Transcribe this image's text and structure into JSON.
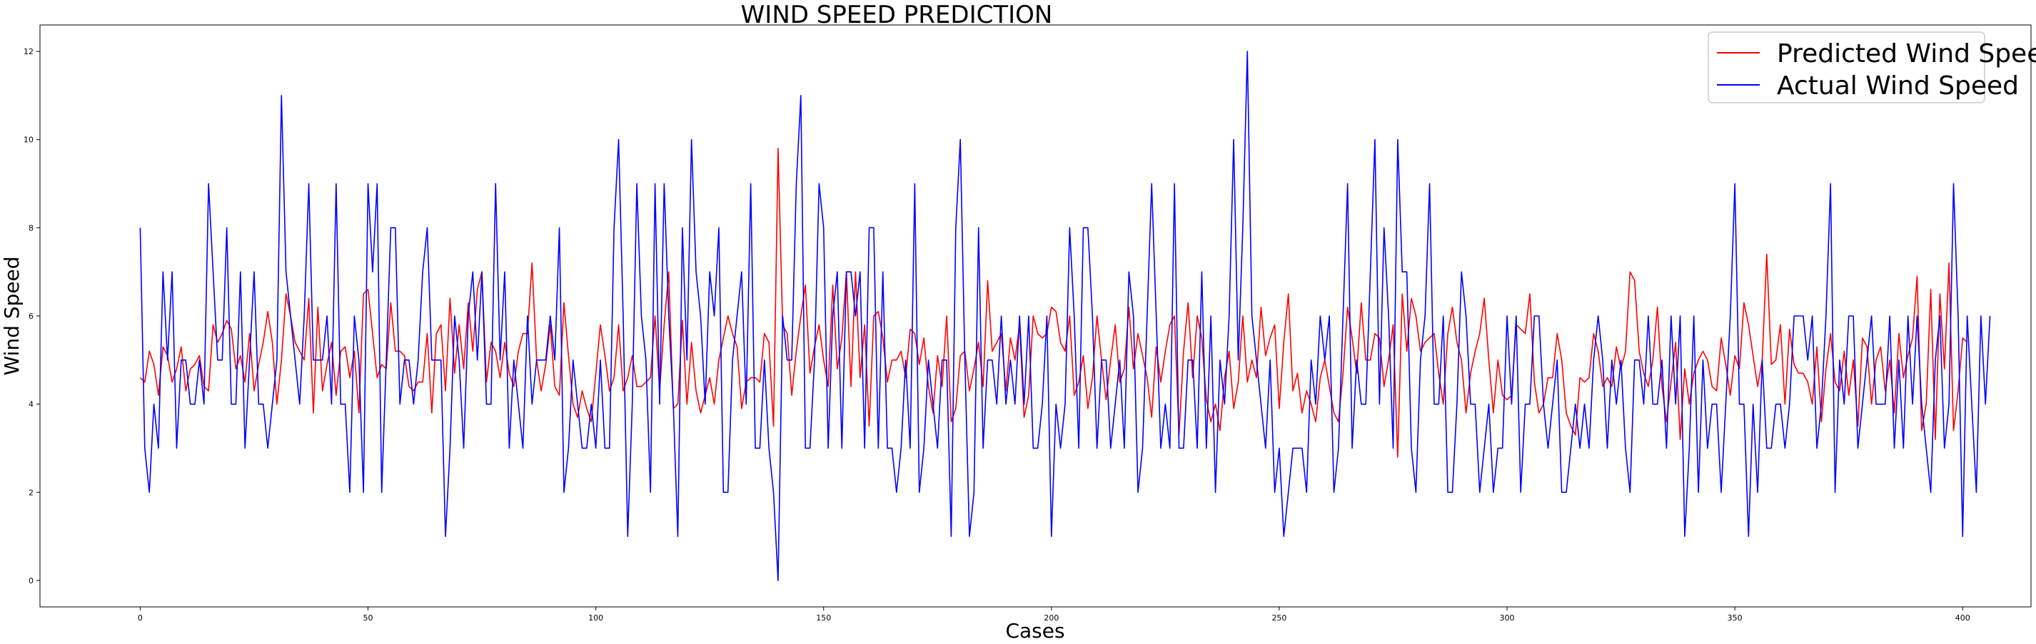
{
  "chart_data": {
    "type": "line",
    "title": "WIND SPEED PREDICTION",
    "xlabel": "Cases",
    "ylabel": "Wind Speed",
    "xlim": [
      -22,
      415
    ],
    "ylim": [
      -0.6,
      12.6
    ],
    "xticks": [
      0,
      50,
      100,
      150,
      200,
      250,
      300,
      350,
      400
    ],
    "yticks": [
      0,
      2,
      4,
      6,
      8,
      10,
      12
    ],
    "grid": false,
    "legend_position": "top-right",
    "series": [
      {
        "name": "Predicted Wind Speed",
        "color": "#ff0000",
        "values": [
          4.6,
          4.5,
          5.2,
          4.9,
          4.2,
          5.3,
          5.1,
          4.5,
          4.8,
          5.3,
          4.3,
          4.8,
          4.9,
          5.1,
          4.4,
          4.3,
          5.8,
          5.4,
          5.6,
          5.9,
          5.7,
          4.8,
          5.1,
          4.5,
          5.6,
          4.3,
          4.9,
          5.4,
          6.1,
          5.4,
          4.0,
          5.0,
          6.5,
          6.0,
          5.4,
          5.2,
          5.0,
          6.4,
          3.8,
          6.2,
          4.3,
          4.9,
          5.4,
          4.2,
          5.2,
          5.3,
          4.6,
          5.2,
          3.8,
          6.5,
          6.6,
          5.6,
          4.6,
          4.9,
          4.8,
          6.3,
          5.2,
          5.2,
          5.1,
          4.4,
          4.3,
          4.5,
          4.5,
          5.6,
          3.8,
          5.6,
          5.8,
          4.3,
          6.4,
          4.7,
          5.8,
          4.8,
          6.3,
          5.2,
          6.6,
          7.0,
          4.5,
          5.4,
          5.2,
          4.6,
          5.4,
          4.7,
          4.4,
          5.2,
          5.6,
          5.6,
          7.2,
          5.0,
          4.3,
          4.9,
          5.8,
          4.4,
          4.2,
          6.3,
          5.1,
          4.0,
          3.7,
          4.3,
          3.9,
          3.6,
          4.7,
          5.8,
          5.1,
          4.3,
          4.6,
          5.8,
          4.3,
          4.6,
          5.1,
          4.4,
          4.4,
          4.5,
          4.6,
          6.0,
          4.3,
          5.8,
          7.0,
          3.9,
          4.0,
          5.9,
          4.0,
          5.4,
          4.3,
          3.8,
          4.2,
          4.6,
          4.0,
          5.0,
          5.5,
          6.0,
          5.6,
          5.3,
          3.9,
          4.5,
          4.6,
          4.6,
          4.5,
          5.6,
          5.4,
          3.5,
          9.8,
          5.8,
          5.6,
          4.2,
          5.2,
          6.0,
          6.7,
          4.7,
          5.3,
          5.8,
          5.0,
          4.4,
          6.7,
          4.8,
          5.5,
          7.0,
          4.4,
          7.0,
          4.6,
          5.8,
          3.5,
          6.0,
          6.1,
          5.5,
          4.5,
          5.0,
          5.0,
          5.2,
          4.6,
          5.7,
          5.6,
          4.9,
          5.5,
          4.4,
          3.8,
          5.1,
          4.4,
          6.0,
          3.6,
          3.9,
          5.1,
          5.2,
          4.3,
          4.8,
          5.4,
          4.4,
          6.8,
          5.2,
          5.4,
          5.6,
          4.3,
          5.5,
          5.0,
          5.8,
          3.7,
          4.2,
          6.0,
          5.6,
          5.5,
          5.6,
          6.2,
          6.1,
          5.4,
          5.2,
          6.0,
          4.2,
          4.5,
          5.1,
          3.9,
          4.6,
          6.0,
          5.0,
          4.1,
          5.0,
          5.8,
          4.5,
          4.8,
          6.2,
          4.8,
          5.6,
          5.1,
          4.6,
          3.7,
          5.3,
          4.5,
          5.2,
          5.8,
          6.0,
          3.3,
          5.2,
          6.3,
          4.6,
          6.0,
          5.5,
          4.1,
          3.6,
          4.0,
          3.4,
          4.6,
          5.2,
          3.9,
          4.5,
          6.0,
          4.5,
          5.0,
          4.6,
          6.2,
          5.1,
          5.5,
          5.8,
          3.9,
          5.4,
          6.5,
          4.3,
          4.7,
          3.8,
          4.3,
          4.0,
          3.6,
          4.6,
          5.0,
          4.4,
          3.8,
          3.6,
          4.7,
          6.2,
          5.5,
          4.7,
          6.3,
          5.0,
          5.0,
          5.6,
          5.5,
          4.4,
          5.0,
          5.8,
          2.8,
          6.5,
          5.2,
          6.4,
          6.0,
          5.2,
          5.4,
          5.5,
          5.6,
          4.7,
          4.0,
          5.6,
          6.2,
          5.4,
          5.0,
          3.8,
          4.7,
          5.2,
          5.6,
          6.4,
          5.0,
          3.8,
          5.0,
          4.2,
          4.1,
          4.2,
          5.8,
          5.7,
          5.6,
          6.5,
          4.5,
          3.8,
          4.0,
          4.6,
          4.6,
          5.6,
          5.0,
          3.8,
          3.5,
          3.3,
          4.6,
          4.5,
          4.6,
          5.6,
          5.2,
          4.4,
          4.6,
          4.4,
          5.3,
          4.8,
          5.2,
          7.0,
          6.8,
          5.2,
          4.7,
          4.4,
          5.0,
          6.2,
          4.4,
          3.6,
          4.5,
          5.4,
          3.2,
          4.8,
          4.0,
          4.7,
          5.0,
          5.2,
          5.0,
          4.4,
          4.3,
          5.5,
          4.9,
          4.2,
          5.1,
          4.8,
          6.3,
          5.8,
          5.1,
          4.4,
          5.0,
          7.4,
          4.9,
          5.0,
          5.8,
          4.0,
          5.7,
          4.9,
          4.7,
          4.7,
          4.5,
          4.0,
          5.3,
          3.6,
          4.8,
          5.6,
          4.5,
          4.3,
          5.2,
          4.2,
          5.0,
          3.5,
          5.5,
          5.3,
          4.0,
          5.0,
          5.3,
          4.3,
          5.0,
          3.8,
          5.6,
          4.6,
          5.1,
          5.5,
          6.9,
          3.4,
          4.0,
          6.6,
          3.2,
          6.5,
          4.8,
          7.2,
          3.4,
          4.3,
          5.5,
          5.4
        ]
      },
      {
        "name": "Actual Wind Speed",
        "color": "#0000ff",
        "values": [
          8,
          3,
          2,
          4,
          3,
          7,
          5,
          7,
          3,
          5,
          5,
          4,
          4,
          5,
          4,
          9,
          7,
          5,
          5,
          8,
          4,
          4,
          7,
          3,
          5,
          7,
          4,
          4,
          3,
          4,
          5,
          11,
          7,
          6,
          5,
          4,
          6,
          9,
          5,
          5,
          5,
          6,
          4,
          9,
          4,
          4,
          2,
          6,
          5,
          2,
          9,
          7,
          9,
          2,
          5,
          8,
          8,
          4,
          5,
          5,
          4,
          5,
          7,
          8,
          5,
          5,
          5,
          1,
          3,
          6,
          5,
          3,
          6,
          7,
          5,
          7,
          4,
          4,
          9,
          5,
          7,
          3,
          5,
          4,
          3,
          6,
          4,
          5,
          5,
          5,
          6,
          5,
          8,
          2,
          3,
          5,
          4,
          3,
          3,
          4,
          3,
          5,
          3,
          3,
          8,
          10,
          6,
          1,
          4,
          9,
          6,
          5,
          2,
          9,
          4,
          9,
          6,
          4,
          1,
          8,
          5,
          10,
          7,
          6,
          4,
          7,
          6,
          8,
          2,
          2,
          5,
          6,
          7,
          4,
          9,
          3,
          3,
          5,
          3,
          2,
          0,
          6,
          5,
          5,
          9,
          11,
          3,
          3,
          5,
          9,
          8,
          3,
          6,
          7,
          3,
          7,
          7,
          6,
          7,
          3,
          8,
          8,
          3,
          7,
          3,
          3,
          2,
          3,
          5,
          3,
          9,
          2,
          3,
          5,
          4,
          3,
          5,
          5,
          1,
          8,
          10,
          5,
          1,
          2,
          8,
          3,
          5,
          5,
          4,
          6,
          4,
          5,
          4,
          6,
          4,
          6,
          3,
          3,
          4,
          6,
          1,
          4,
          3,
          4,
          8,
          6,
          3,
          8,
          8,
          6,
          3,
          5,
          5,
          3,
          4,
          5,
          3,
          7,
          6,
          2,
          3,
          6,
          9,
          6,
          3,
          4,
          3,
          9,
          3,
          3,
          5,
          5,
          3,
          7,
          3,
          6,
          2,
          5,
          4,
          6,
          10,
          5,
          8,
          12,
          6,
          5,
          4,
          3,
          5,
          2,
          3,
          1,
          2,
          3,
          3,
          3,
          2,
          5,
          4,
          6,
          5,
          6,
          2,
          3,
          6,
          9,
          3,
          5,
          4,
          4,
          7,
          10,
          4,
          8,
          6,
          3,
          10,
          7,
          7,
          3,
          2,
          5,
          6,
          9,
          4,
          4,
          6,
          2,
          2,
          4,
          7,
          6,
          4,
          4,
          2,
          3,
          4,
          2,
          3,
          3,
          6,
          4,
          6,
          2,
          4,
          4,
          6,
          6,
          4,
          3,
          4,
          5,
          2,
          2,
          3,
          4,
          3,
          4,
          3,
          5,
          6,
          5,
          3,
          5,
          4,
          5,
          3,
          2,
          5,
          5,
          4,
          6,
          4,
          4,
          5,
          3,
          6,
          4,
          6,
          1,
          3,
          6,
          2,
          5,
          3,
          4,
          4,
          2,
          4,
          6,
          9,
          4,
          4,
          1,
          4,
          2,
          5,
          3,
          3,
          4,
          4,
          3,
          4,
          6,
          6,
          6,
          5,
          6,
          3,
          4,
          6,
          9,
          2,
          5,
          4,
          6,
          6,
          3,
          4,
          5,
          6,
          4,
          4,
          4,
          6,
          3,
          5,
          3,
          6,
          4,
          6,
          4,
          3,
          2,
          5,
          6,
          3,
          4,
          9,
          6,
          1,
          6,
          4,
          2,
          6,
          4,
          6
        ]
      }
    ]
  }
}
